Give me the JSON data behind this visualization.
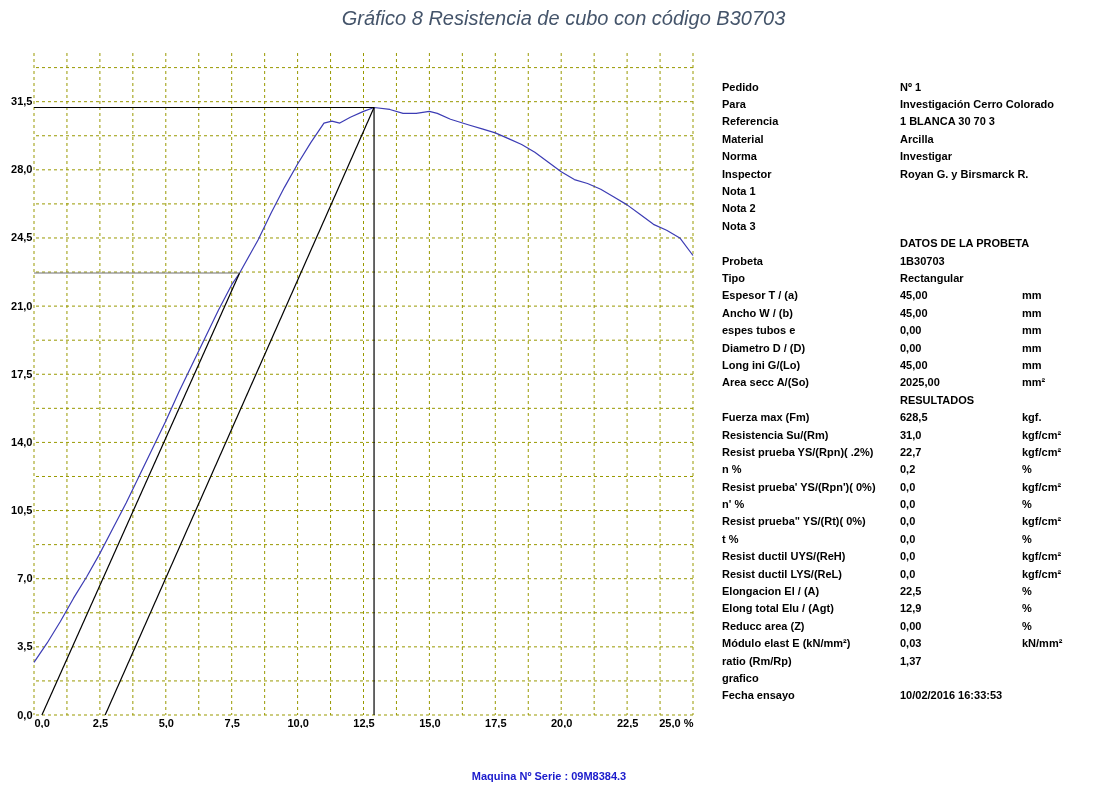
{
  "chart_data": {
    "type": "line",
    "title": "Gráfico 8 Resistencia de cubo con código B30703",
    "xlim": [
      0,
      25
    ],
    "ylim": [
      0,
      34
    ],
    "xticks": [
      {
        "value": 0,
        "label": "0,0"
      },
      {
        "value": 1.25,
        "label": null
      },
      {
        "value": 2.5,
        "label": "2,5"
      },
      {
        "value": 3.75,
        "label": null
      },
      {
        "value": 5,
        "label": "5,0"
      },
      {
        "value": 6.25,
        "label": null
      },
      {
        "value": 7.5,
        "label": "7,5"
      },
      {
        "value": 8.75,
        "label": null
      },
      {
        "value": 10,
        "label": "10,0"
      },
      {
        "value": 11.25,
        "label": null
      },
      {
        "value": 12.5,
        "label": "12,5"
      },
      {
        "value": 13.75,
        "label": null
      },
      {
        "value": 15,
        "label": "15,0"
      },
      {
        "value": 16.25,
        "label": null
      },
      {
        "value": 17.5,
        "label": "17,5"
      },
      {
        "value": 18.75,
        "label": null
      },
      {
        "value": 20,
        "label": "20,0"
      },
      {
        "value": 21.25,
        "label": null
      },
      {
        "value": 22.5,
        "label": "22,5"
      },
      {
        "value": 23.75,
        "label": null
      },
      {
        "value": 25,
        "label": "25,0 %"
      }
    ],
    "yticks": [
      {
        "value": 0,
        "label": "0,0"
      },
      {
        "value": 1.75,
        "label": null
      },
      {
        "value": 3.5,
        "label": "3,5"
      },
      {
        "value": 5.25,
        "label": null
      },
      {
        "value": 7,
        "label": "7,0"
      },
      {
        "value": 8.75,
        "label": null
      },
      {
        "value": 10.5,
        "label": "10,5"
      },
      {
        "value": 12.25,
        "label": null
      },
      {
        "value": 14,
        "label": "14,0"
      },
      {
        "value": 15.75,
        "label": null
      },
      {
        "value": 17.5,
        "label": "17,5"
      },
      {
        "value": 19.25,
        "label": null
      },
      {
        "value": 21,
        "label": "21,0"
      },
      {
        "value": 22.75,
        "label": null
      },
      {
        "value": 24.5,
        "label": "24,5"
      },
      {
        "value": 26.25,
        "label": null
      },
      {
        "value": 28,
        "label": "28,0"
      },
      {
        "value": 29.75,
        "label": null
      },
      {
        "value": 31.5,
        "label": "31,5"
      },
      {
        "value": 33.25,
        "label": null
      }
    ],
    "grid": true,
    "series": [
      {
        "color": "#3c3cb4",
        "x": [
          0,
          0.5,
          1,
          1.5,
          2,
          2.5,
          3,
          3.5,
          4,
          4.5,
          5,
          5.5,
          6,
          6.5,
          7,
          7.5,
          7.8,
          8.5,
          9,
          9.5,
          10,
          10.5,
          11,
          11.3,
          11.6,
          12,
          12.5,
          12.9,
          13.5,
          14,
          14.5,
          15,
          15.3,
          15.8,
          16.5,
          17,
          17.5,
          18,
          18.5,
          19,
          19.5,
          20,
          20.5,
          21,
          21.5,
          22,
          22.5,
          23,
          23.5,
          24,
          24.5,
          25
        ],
        "values": [
          2.7,
          3.7,
          4.8,
          6.0,
          7.1,
          8.3,
          9.6,
          10.9,
          12.3,
          13.7,
          15.1,
          16.6,
          18.0,
          19.4,
          20.8,
          22.1,
          22.7,
          24.4,
          25.8,
          27.1,
          28.3,
          29.4,
          30.4,
          30.5,
          30.4,
          30.7,
          31.0,
          31.2,
          31.1,
          30.9,
          30.9,
          31.0,
          30.9,
          30.6,
          30.3,
          30.1,
          29.9,
          29.6,
          29.3,
          28.9,
          28.4,
          27.9,
          27.5,
          27.3,
          27.0,
          26.6,
          26.2,
          25.7,
          25.2,
          24.9,
          24.5,
          23.6
        ]
      },
      {
        "color": "#000000",
        "x": [
          0.3,
          7.8
        ],
        "values": [
          0,
          22.7
        ]
      },
      {
        "color": "#000000",
        "x": [
          2.7,
          12.9
        ],
        "values": [
          0,
          31.2
        ]
      },
      {
        "color": "#707070",
        "x": [
          0,
          7.8
        ],
        "values": [
          22.7,
          22.7
        ]
      },
      {
        "color": "#000000",
        "x": [
          0,
          12.9
        ],
        "values": [
          31.2,
          31.2
        ]
      },
      {
        "color": "#000000",
        "x": [
          12.9,
          12.9
        ],
        "values": [
          0,
          31.2
        ]
      }
    ],
    "annotations": [
      "Pedido\tNº 1",
      "Para\tInvestigación Cerro Colorado",
      "Referencia\t1 BLANCA 30 70 3",
      "Material\tArcilla",
      "Norma\tInvestigar",
      "Inspector\tRoyan G. y Birsmarck R.",
      "Nota 1",
      "Nota 2",
      "Nota 3",
      "\tDATOS DE LA PROBETA",
      "Probeta\t1B30703",
      "Tipo\tRectangular",
      "Espesor  T / (a)\t45,00\tmm",
      "Ancho  W / (b)\t45,00\tmm",
      "espes tubos  e\t0,00\tmm",
      "Diametro  D / (D)\t0,00\tmm",
      "Long ini    G/(Lo)\t45,00\tmm",
      "Area secc A/(So)\t2025,00\tmm²",
      "\tRESULTADOS",
      "Fuerza max   (Fm)\t628,5\tkgf.",
      "Resistencia Su/(Rm)\t31,0\tkgf/cm²",
      "Resist prueba YS/(Rpn)( .2%)\t22,7\tkgf/cm²",
      "n %\t0,2\t%",
      "Resist prueba'  YS/(Rpn')( 0%)\t0,0\tkgf/cm²",
      "n' %\t0,0\t%",
      "Resist prueba\"  YS/(Rt)( 0%)\t0,0\tkgf/cm²",
      "t %\t0,0\t%",
      "Resist ductil UYS/(ReH)\t0,0\tkgf/cm²",
      "Resist ductil  LYS/(ReL)\t0,0\tkgf/cm²",
      "Elongacion   El /  (A)\t22,5\t%",
      "Elong total    Elu / (Agt)\t12,9\t%",
      "Reducc area   (Z)\t0,00\t%",
      "Módulo elast E (kN/mm²)\t0,03\tkN/mm²",
      "ratio (Rm/Rp)\t1,37",
      "grafico",
      "Fecha ensayo\t10/02/2016 16:33:53",
      "Maquina Nº Serie : 09M8384.3"
    ]
  }
}
